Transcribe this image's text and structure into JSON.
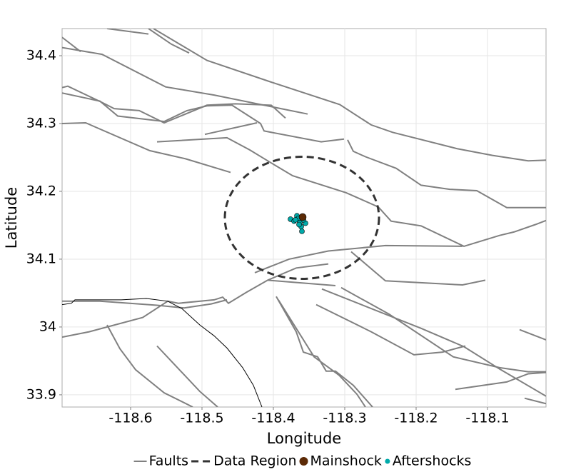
{
  "chart_data": {
    "type": "map",
    "xlabel": "Longitude",
    "ylabel": "Latitude",
    "xlim": [
      -118.696,
      -118.018
    ],
    "ylim": [
      33.882,
      34.44
    ],
    "xticks": [
      -118.6,
      -118.5,
      -118.4,
      -118.3,
      -118.2,
      -118.1
    ],
    "yticks": [
      33.9,
      34,
      34.1,
      34.2,
      34.3,
      34.4
    ],
    "grid": true,
    "legend": "bottom",
    "faults": {
      "name": "Faults",
      "color": "#808080",
      "lines": [
        {
          "lon": [
            -118.696,
            -118.64,
            -118.551,
            -118.483,
            -118.352
          ],
          "lat": [
            34.412,
            34.402,
            34.354,
            34.342,
            34.314
          ]
        },
        {
          "lon": [
            -118.696,
            -118.67
          ],
          "lat": [
            34.427,
            34.406
          ]
        },
        {
          "lon": [
            -118.633,
            -118.575
          ],
          "lat": [
            34.44,
            34.432
          ]
        },
        {
          "lon": [
            -118.575,
            -118.543,
            -118.518
          ],
          "lat": [
            34.44,
            34.417,
            34.404
          ]
        },
        {
          "lon": [
            -118.568,
            -118.493,
            -118.403,
            -118.307,
            -118.263,
            -118.233,
            -118.143,
            -118.093,
            -118.043,
            -118.018
          ],
          "lat": [
            34.44,
            34.393,
            34.361,
            34.328,
            34.298,
            34.287,
            34.263,
            34.253,
            34.245,
            34.246
          ]
        },
        {
          "lon": [
            -118.696,
            -118.688,
            -118.64,
            -118.623,
            -118.588,
            -118.553,
            -118.493,
            -118.453,
            -118.403,
            -118.383
          ],
          "lat": [
            34.353,
            34.355,
            34.331,
            34.322,
            34.319,
            34.301,
            34.327,
            34.329,
            34.327,
            34.308
          ]
        },
        {
          "lon": [
            -118.696,
            -118.643,
            -118.618,
            -118.553,
            -118.521,
            -118.493,
            -118.458,
            -118.418,
            -118.413,
            -118.333,
            -118.301
          ],
          "lat": [
            34.345,
            34.333,
            34.311,
            34.303,
            34.319,
            34.326,
            34.327,
            34.3,
            34.289,
            34.273,
            34.277
          ]
        },
        {
          "lon": [
            -118.496,
            -118.423
          ],
          "lat": [
            34.284,
            34.301
          ]
        },
        {
          "lon": [
            -118.563,
            -118.465,
            -118.433,
            -118.408,
            -118.373,
            -118.298,
            -118.253,
            -118.235,
            -118.193,
            -118.133,
            -118.083,
            -118.063,
            -118.033,
            -118.018
          ],
          "lat": [
            34.273,
            34.279,
            34.261,
            34.245,
            34.223,
            34.198,
            34.177,
            34.156,
            34.149,
            34.119,
            34.135,
            34.14,
            34.151,
            34.157
          ]
        },
        {
          "lon": [
            -118.696,
            -118.663,
            -118.573,
            -118.523,
            -118.46
          ],
          "lat": [
            34.3,
            34.301,
            34.26,
            34.248,
            34.228
          ]
        },
        {
          "lon": [
            -118.296,
            -118.288,
            -118.271,
            -118.228,
            -118.193,
            -118.153,
            -118.115,
            -118.073,
            -118.018
          ],
          "lat": [
            34.276,
            34.259,
            34.251,
            34.234,
            34.209,
            34.203,
            34.201,
            34.176,
            34.176
          ]
        },
        {
          "lon": [
            -118.426,
            -118.378,
            -118.323,
            -118.243,
            -118.135
          ],
          "lat": [
            34.08,
            34.1,
            34.112,
            34.12,
            34.119
          ]
        },
        {
          "lon": [
            -118.408,
            -118.313
          ],
          "lat": [
            34.069,
            34.061
          ]
        },
        {
          "lon": [
            -118.291,
            -118.243,
            -118.135,
            -118.103
          ],
          "lat": [
            34.111,
            34.068,
            34.062,
            34.069
          ]
        },
        {
          "lon": [
            -118.696,
            -118.658,
            -118.583,
            -118.548,
            -118.533,
            -118.483,
            -118.471,
            -118.463,
            -118.438,
            -118.408,
            -118.368,
            -118.323
          ],
          "lat": [
            33.985,
            33.993,
            34.014,
            34.038,
            34.035,
            34.04,
            34.044,
            34.035,
            34.051,
            34.069,
            34.087,
            34.093
          ]
        },
        {
          "lon": [
            -118.696,
            -118.643,
            -118.563,
            -118.525,
            -118.487,
            -118.465
          ],
          "lat": [
            34.038,
            34.038,
            34.032,
            34.028,
            34.034,
            34.04
          ]
        },
        {
          "lon": [
            -118.396,
            -118.368,
            -118.358,
            -118.338,
            -118.326,
            -118.313,
            -118.288,
            -118.261
          ],
          "lat": [
            34.045,
            33.993,
            33.963,
            33.956,
            33.935,
            33.935,
            33.914,
            33.882
          ]
        },
        {
          "lon": [
            -118.393,
            -118.343,
            -118.308,
            -118.283,
            -118.271
          ],
          "lat": [
            34.04,
            33.956,
            33.929,
            33.901,
            33.882
          ]
        },
        {
          "lon": [
            -118.332,
            -118.193,
            -118.133,
            -118.083,
            -118.018
          ],
          "lat": [
            34.056,
            33.998,
            33.971,
            33.938,
            33.898
          ]
        },
        {
          "lon": [
            -118.34,
            -118.263,
            -118.203,
            -118.163,
            -118.131
          ],
          "lat": [
            34.033,
            33.993,
            33.959,
            33.963,
            33.972
          ]
        },
        {
          "lon": [
            -118.305,
            -118.238,
            -118.148,
            -118.083,
            -118.043,
            -118.018
          ],
          "lat": [
            34.058,
            34.019,
            33.956,
            33.94,
            33.934,
            33.934
          ]
        },
        {
          "lon": [
            -118.145,
            -118.073,
            -118.043,
            -118.018
          ],
          "lat": [
            33.908,
            33.919,
            33.931,
            33.933
          ]
        },
        {
          "lon": [
            -118.633,
            -118.615,
            -118.593,
            -118.553,
            -118.513
          ],
          "lat": [
            34.003,
            33.968,
            33.937,
            33.903,
            33.882
          ]
        },
        {
          "lon": [
            -118.563,
            -118.503,
            -118.478
          ],
          "lat": [
            33.972,
            33.905,
            33.882
          ]
        },
        {
          "lon": [
            -118.055,
            -118.018
          ],
          "lat": [
            33.996,
            33.981
          ]
        },
        {
          "lon": [
            -118.048,
            -118.018
          ],
          "lat": [
            33.895,
            33.887
          ]
        }
      ]
    },
    "coastline": {
      "color": "#000000",
      "lon": [
        -118.696,
        -118.683,
        -118.678,
        -118.613,
        -118.578,
        -118.548,
        -118.528,
        -118.503,
        -118.483,
        -118.465,
        -118.443,
        -118.428,
        -118.416
      ],
      "lat": [
        34.033,
        34.035,
        34.04,
        34.04,
        34.042,
        34.038,
        34.027,
        34.003,
        33.987,
        33.969,
        33.94,
        33.914,
        33.882
      ]
    },
    "region": {
      "name": "Data Region",
      "color": "#333333",
      "lon": -118.36,
      "lat": 34.161,
      "rx": 0.108,
      "ry": 0.09
    },
    "mainshock": {
      "name": "Mainshock",
      "color": "#5c2a06",
      "lon": [
        -118.359
      ],
      "lat": [
        34.162
      ]
    },
    "aftershocks": {
      "name": "Aftershocks",
      "color": "#00aaaa",
      "lon": [
        -118.376,
        -118.371,
        -118.367,
        -118.365,
        -118.363,
        -118.361,
        -118.36,
        -118.355,
        -118.364,
        -118.369,
        -118.358
      ],
      "lat": [
        34.159,
        34.156,
        34.164,
        34.16,
        34.154,
        34.148,
        34.141,
        34.153,
        34.151,
        34.158,
        34.158
      ]
    }
  }
}
